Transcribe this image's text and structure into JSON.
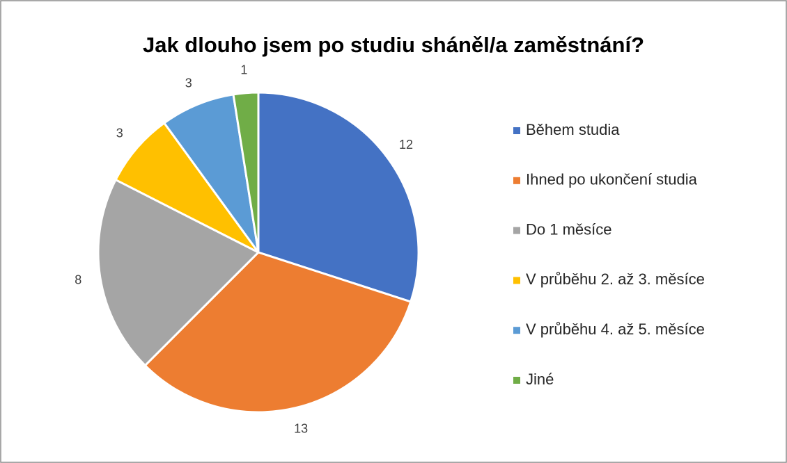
{
  "chart_data": {
    "type": "pie",
    "title": "Jak dlouho jsem po studiu sháněl/a zaměstnání?",
    "categories": [
      "Během studia",
      "Ihned po ukončení studia",
      "Do 1 měsíce",
      "V průběhu 2. až 3. měsíce",
      "V průběhu 4. až 5. měsíce",
      "Jiné"
    ],
    "values": [
      12,
      13,
      8,
      3,
      3,
      1
    ],
    "colors": [
      "#4472c4",
      "#ed7d31",
      "#a5a5a5",
      "#ffc000",
      "#5b9bd5",
      "#70ad47"
    ],
    "legend": "right"
  }
}
